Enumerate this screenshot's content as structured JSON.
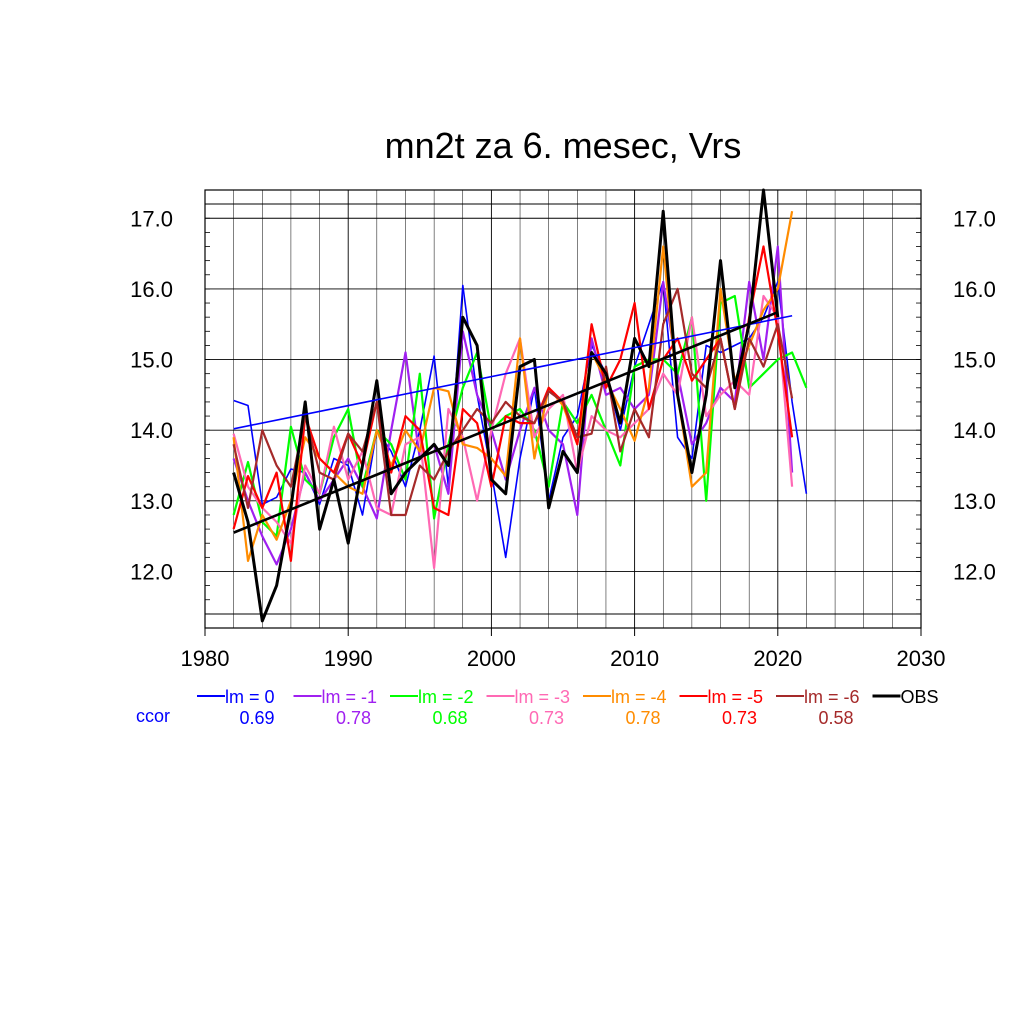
{
  "chart_data": {
    "type": "line",
    "title": "mn2t za 6. mesec, Vrs",
    "xlabel": "",
    "ylabel": "",
    "xlim": [
      1980,
      2030
    ],
    "ylim": [
      11.2,
      17.4
    ],
    "x_ticks": [
      1980,
      1990,
      2000,
      2010,
      2020,
      2030
    ],
    "y_ticks": [
      12.0,
      13.0,
      14.0,
      15.0,
      16.0,
      17.0
    ],
    "y_tick_labels": [
      "12.0",
      "13.0",
      "14.0",
      "15.0",
      "16.0",
      "17.0"
    ],
    "grid": true,
    "legend_position": "bottom",
    "ccor_label": "ccor",
    "ccor_color": "#0000ff",
    "series": [
      {
        "name": "lm = 0",
        "ccor": "0.69",
        "color": "#0000ff",
        "x_start": 1982,
        "values": [
          14.42,
          14.35,
          12.95,
          13.05,
          13.45,
          13.4,
          12.95,
          13.6,
          13.5,
          12.8,
          14.0,
          13.7,
          13.2,
          14.0,
          15.05,
          13.2,
          16.05,
          14.5,
          13.4,
          12.2,
          13.6,
          14.6,
          13.0,
          13.9,
          14.2,
          15.2,
          14.8,
          14.0,
          14.9,
          15.5,
          16.1,
          13.9,
          13.6,
          15.2,
          15.1,
          15.2,
          15.3,
          15.6,
          16.1,
          14.4,
          13.1
        ],
        "trend": [
          [
            1982,
            14.02
          ],
          [
            2021,
            15.62
          ]
        ]
      },
      {
        "name": "lm = -1",
        "ccor": "0.78",
        "color": "#a020f0",
        "x_start": 1982,
        "values": [
          13.6,
          13.0,
          12.5,
          12.1,
          12.6,
          13.4,
          13.0,
          13.3,
          13.6,
          13.2,
          12.75,
          14.0,
          15.1,
          13.6,
          13.8,
          13.1,
          15.4,
          14.5,
          14.0,
          13.3,
          14.0,
          14.6,
          14.0,
          13.8,
          12.8,
          15.3,
          14.5,
          14.6,
          14.3,
          14.5,
          16.1,
          14.8,
          13.8,
          14.1,
          14.6,
          14.4,
          16.1,
          15.0,
          16.6,
          13.4
        ],
        "trend": []
      },
      {
        "name": "lm = -2",
        "ccor": "0.68",
        "color": "#00ff00",
        "x_start": 1982,
        "values": [
          12.8,
          13.55,
          12.7,
          12.5,
          14.05,
          13.3,
          13.1,
          13.9,
          14.3,
          13.2,
          14.0,
          13.8,
          13.3,
          14.8,
          12.75,
          13.8,
          14.6,
          15.1,
          14.0,
          14.2,
          14.3,
          14.0,
          13.2,
          14.4,
          14.1,
          14.5,
          14.0,
          13.5,
          14.9,
          15.0,
          15.0,
          14.8,
          15.6,
          13.0,
          15.8,
          15.9,
          14.6,
          14.8,
          15.0,
          15.1,
          14.6
        ],
        "trend": []
      },
      {
        "name": "lm = -3",
        "ccor": "0.73",
        "color": "#ff69b4",
        "x_start": 1982,
        "values": [
          13.95,
          13.2,
          12.9,
          12.7,
          12.4,
          13.5,
          13.1,
          14.05,
          13.3,
          13.7,
          12.9,
          12.8,
          13.8,
          13.9,
          12.05,
          14.3,
          13.9,
          13.0,
          14.0,
          14.8,
          15.3,
          13.9,
          14.3,
          14.5,
          13.4,
          14.2,
          14.0,
          13.9,
          14.1,
          14.3,
          14.8,
          14.5,
          15.6,
          14.2,
          14.5,
          14.7,
          14.5,
          15.9,
          15.6,
          13.2
        ],
        "trend": []
      },
      {
        "name": "lm = -4",
        "ccor": "0.78",
        "color": "#ff8c00",
        "x_start": 1982,
        "values": [
          13.9,
          12.15,
          12.8,
          12.45,
          13.0,
          13.9,
          13.6,
          13.4,
          13.2,
          13.1,
          14.0,
          13.5,
          14.0,
          13.7,
          14.6,
          14.55,
          13.8,
          13.75,
          13.6,
          13.35,
          15.3,
          13.6,
          14.6,
          14.35,
          13.8,
          15.1,
          14.7,
          14.3,
          13.85,
          14.6,
          16.6,
          14.5,
          13.2,
          13.4,
          16.0,
          14.7,
          15.2,
          15.7,
          16.0,
          17.1
        ],
        "trend": []
      },
      {
        "name": "lm = -5",
        "ccor": "0.73",
        "color": "#ff0000",
        "x_start": 1982,
        "values": [
          12.6,
          13.35,
          12.9,
          13.4,
          12.15,
          14.2,
          13.6,
          13.4,
          13.95,
          13.5,
          14.4,
          13.4,
          14.2,
          14.0,
          12.9,
          12.8,
          14.3,
          14.1,
          13.2,
          14.2,
          14.1,
          14.1,
          14.6,
          14.4,
          13.8,
          15.5,
          14.6,
          15.0,
          15.8,
          14.3,
          15.0,
          15.3,
          14.7,
          15.0,
          15.3,
          14.3,
          15.6,
          16.6,
          15.4,
          13.9
        ],
        "trend": []
      },
      {
        "name": "lm = -6",
        "ccor": "0.58",
        "color": "#a52a2a",
        "x_start": 1982,
        "values": [
          13.8,
          12.9,
          14.0,
          13.5,
          13.2,
          14.2,
          13.4,
          13.3,
          13.95,
          13.7,
          14.4,
          12.8,
          12.8,
          13.5,
          13.3,
          13.7,
          14.0,
          14.3,
          14.1,
          14.4,
          14.2,
          14.1,
          14.55,
          14.4,
          13.9,
          13.95,
          14.9,
          13.7,
          14.3,
          13.9,
          15.5,
          16.0,
          14.8,
          14.6,
          15.3,
          14.3,
          15.3,
          14.9,
          15.5,
          14.45
        ],
        "trend": []
      },
      {
        "name": "OBS",
        "ccor": "",
        "color": "#000000",
        "x_start": 1982,
        "values": [
          13.4,
          12.7,
          11.3,
          11.8,
          12.9,
          14.4,
          12.6,
          13.3,
          12.4,
          13.5,
          14.7,
          13.1,
          13.4,
          13.6,
          13.8,
          13.5,
          15.6,
          15.2,
          13.3,
          13.1,
          14.9,
          15.0,
          12.9,
          13.7,
          13.4,
          15.1,
          14.8,
          14.1,
          15.3,
          14.9,
          17.1,
          14.5,
          13.4,
          14.5,
          16.4,
          14.6,
          15.5,
          17.4,
          15.6
        ],
        "trend": [
          [
            1982,
            12.55
          ],
          [
            2020,
            15.67
          ]
        ]
      }
    ]
  }
}
